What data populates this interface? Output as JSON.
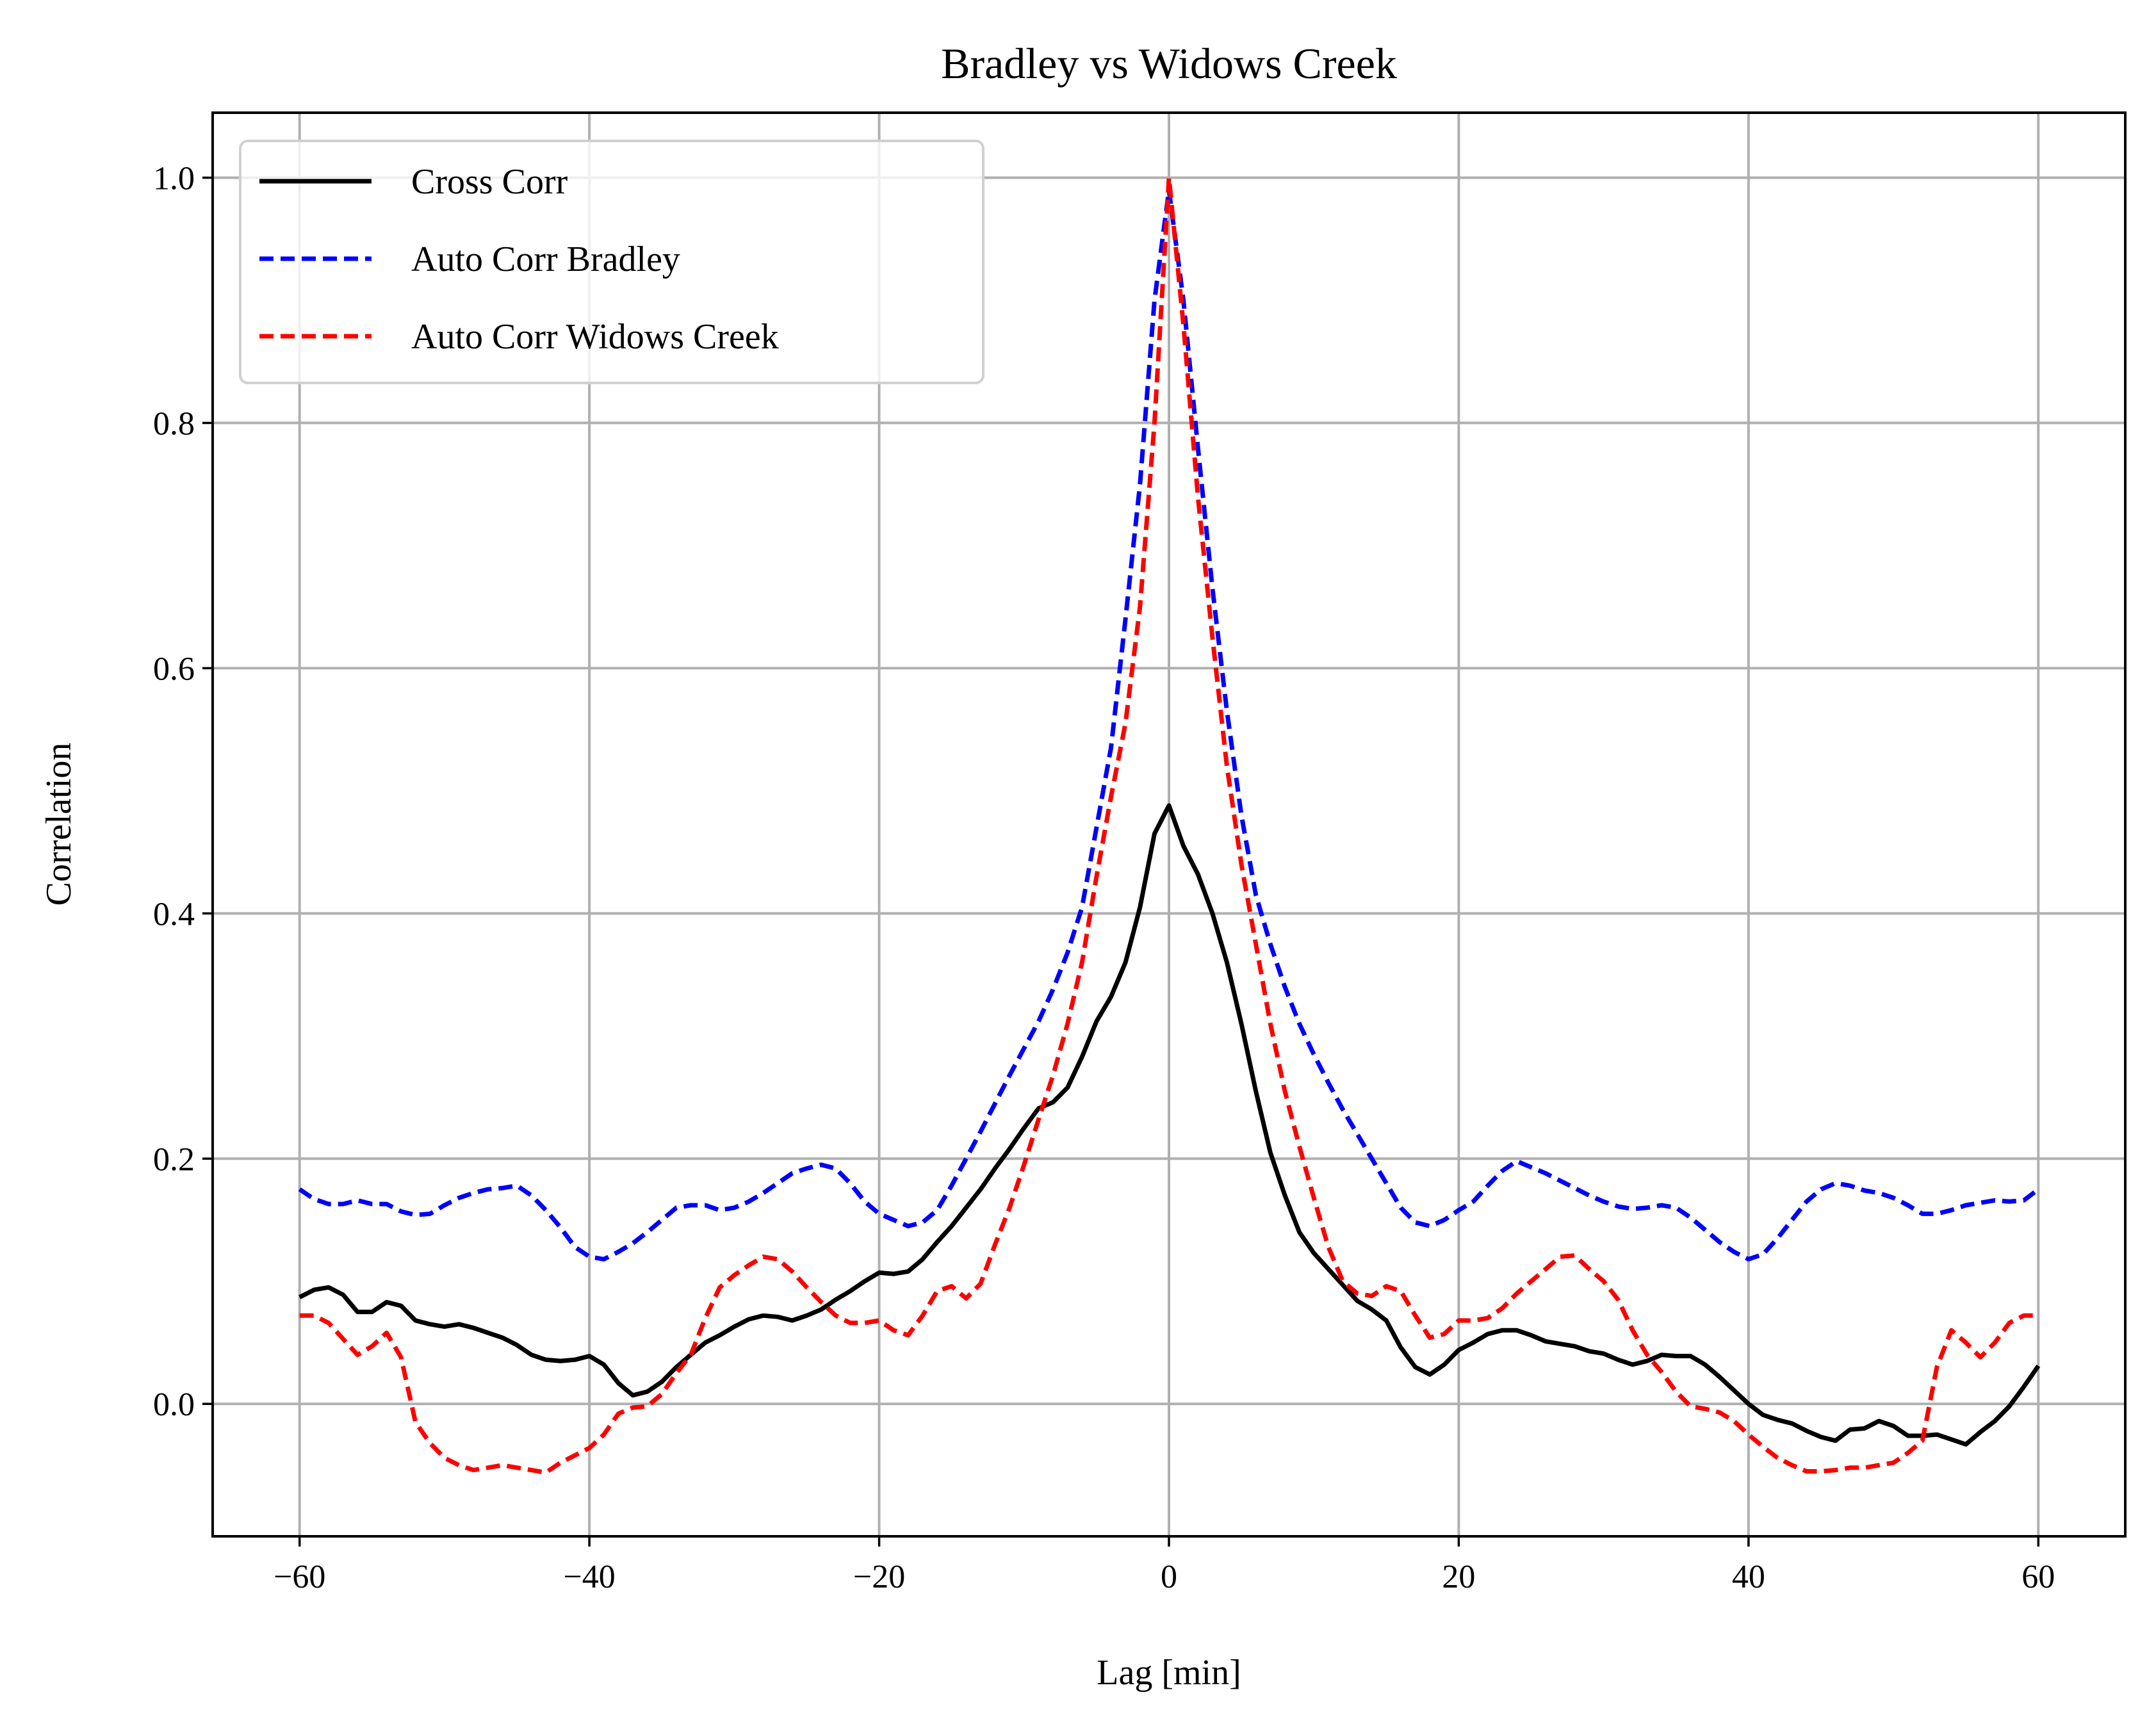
{
  "chart_data": {
    "type": "line",
    "title": "Bradley vs Widows Creek",
    "xlabel": "Lag [min]",
    "ylabel": "Correlation",
    "xlim": [
      -66,
      66
    ],
    "ylim": [
      -0.108,
      1.053
    ],
    "xticks": [
      -60,
      -40,
      -20,
      0,
      20,
      40,
      60
    ],
    "yticks": [
      0.0,
      0.2,
      0.4,
      0.6,
      0.8,
      1.0
    ],
    "xtick_labels": [
      "−60",
      "−40",
      "−20",
      "0",
      "20",
      "40",
      "60"
    ],
    "ytick_labels": [
      "0.0",
      "0.2",
      "0.4",
      "0.6",
      "0.8",
      "1.0"
    ],
    "grid": true,
    "legend_position": "top-left",
    "series": [
      {
        "name": "Cross Corr",
        "color": "#000000",
        "dash": "solid",
        "x": [
          -60,
          -59,
          -58,
          -57,
          -56,
          -55,
          -54,
          -53,
          -52,
          -51,
          -50,
          -49,
          -48,
          -47,
          -46,
          -45,
          -44,
          -43,
          -42,
          -41,
          -40,
          -39,
          -38,
          -37,
          -36,
          -35,
          -34,
          -33,
          -32,
          -31,
          -30,
          -29,
          -28,
          -27,
          -26,
          -25,
          -24,
          -23,
          -22,
          -21,
          -20,
          -19,
          -18,
          -17,
          -16,
          -15,
          -14,
          -13,
          -12,
          -11,
          -10,
          -9,
          -8,
          -7,
          -6,
          -5,
          -4,
          -3,
          -2,
          -1,
          0,
          1,
          2,
          3,
          4,
          5,
          6,
          7,
          8,
          9,
          10,
          11,
          12,
          13,
          14,
          15,
          16,
          17,
          18,
          19,
          20,
          21,
          22,
          23,
          24,
          25,
          26,
          27,
          28,
          29,
          30,
          31,
          32,
          33,
          34,
          35,
          36,
          37,
          38,
          39,
          40,
          41,
          42,
          43,
          44,
          45,
          46,
          47,
          48,
          49,
          50,
          51,
          52,
          53,
          54,
          55,
          56,
          57,
          58,
          59,
          60
        ],
        "y": [
          0.087,
          0.093,
          0.095,
          0.089,
          0.075,
          0.075,
          0.083,
          0.08,
          0.068,
          0.065,
          0.063,
          0.065,
          0.062,
          0.058,
          0.054,
          0.048,
          0.04,
          0.036,
          0.035,
          0.036,
          0.039,
          0.032,
          0.017,
          0.007,
          0.01,
          0.018,
          0.03,
          0.04,
          0.05,
          0.056,
          0.063,
          0.069,
          0.072,
          0.071,
          0.068,
          0.072,
          0.077,
          0.085,
          0.092,
          0.1,
          0.107,
          0.106,
          0.108,
          0.118,
          0.132,
          0.145,
          0.16,
          0.175,
          0.192,
          0.208,
          0.225,
          0.241,
          0.246,
          0.258,
          0.283,
          0.312,
          0.332,
          0.36,
          0.405,
          0.465,
          0.488,
          0.455,
          0.432,
          0.4,
          0.36,
          0.31,
          0.255,
          0.205,
          0.17,
          0.14,
          0.123,
          0.11,
          0.097,
          0.084,
          0.077,
          0.068,
          0.046,
          0.03,
          0.024,
          0.032,
          0.044,
          0.05,
          0.057,
          0.06,
          0.06,
          0.056,
          0.051,
          0.049,
          0.047,
          0.043,
          0.041,
          0.036,
          0.032,
          0.035,
          0.04,
          0.039,
          0.039,
          0.032,
          0.022,
          0.011,
          0.0,
          -0.009,
          -0.013,
          -0.016,
          -0.022,
          -0.027,
          -0.03,
          -0.021,
          -0.02,
          -0.014,
          -0.018,
          -0.026,
          -0.026,
          -0.025,
          -0.029,
          -0.033,
          -0.023,
          -0.014,
          -0.002,
          0.014,
          0.031
        ]
      },
      {
        "name": "Auto Corr Bradley",
        "color": "#0000ff",
        "dash": "dashed",
        "x": [
          -60,
          -59,
          -58,
          -57,
          -56,
          -55,
          -54,
          -53,
          -52,
          -51,
          -50,
          -49,
          -48,
          -47,
          -46,
          -45,
          -44,
          -43,
          -42,
          -41,
          -40,
          -39,
          -38,
          -37,
          -36,
          -35,
          -34,
          -33,
          -32,
          -31,
          -30,
          -29,
          -28,
          -27,
          -26,
          -25,
          -24,
          -23,
          -22,
          -21,
          -20,
          -19,
          -18,
          -17,
          -16,
          -15,
          -14,
          -13,
          -12,
          -11,
          -10,
          -9,
          -8,
          -7,
          -6,
          -5,
          -4,
          -3,
          -2,
          -1,
          0,
          1,
          2,
          3,
          4,
          5,
          6,
          7,
          8,
          9,
          10,
          11,
          12,
          13,
          14,
          15,
          16,
          17,
          18,
          19,
          20,
          21,
          22,
          23,
          24,
          25,
          26,
          27,
          28,
          29,
          30,
          31,
          32,
          33,
          34,
          35,
          36,
          37,
          38,
          39,
          40,
          41,
          42,
          43,
          44,
          45,
          46,
          47,
          48,
          49,
          50,
          51,
          52,
          53,
          54,
          55,
          56,
          57,
          58,
          59,
          60
        ],
        "y": [
          0.175,
          0.167,
          0.163,
          0.163,
          0.166,
          0.163,
          0.163,
          0.157,
          0.154,
          0.155,
          0.162,
          0.168,
          0.172,
          0.175,
          0.176,
          0.178,
          0.17,
          0.158,
          0.144,
          0.128,
          0.12,
          0.118,
          0.124,
          0.131,
          0.14,
          0.15,
          0.16,
          0.162,
          0.162,
          0.158,
          0.16,
          0.165,
          0.172,
          0.18,
          0.188,
          0.192,
          0.195,
          0.192,
          0.18,
          0.165,
          0.155,
          0.15,
          0.145,
          0.148,
          0.158,
          0.178,
          0.2,
          0.222,
          0.245,
          0.268,
          0.29,
          0.312,
          0.338,
          0.368,
          0.405,
          0.47,
          0.535,
          0.64,
          0.75,
          0.9,
          0.99,
          0.9,
          0.78,
          0.665,
          0.565,
          0.48,
          0.415,
          0.375,
          0.34,
          0.31,
          0.285,
          0.262,
          0.24,
          0.22,
          0.2,
          0.18,
          0.16,
          0.148,
          0.145,
          0.15,
          0.158,
          0.165,
          0.178,
          0.19,
          0.198,
          0.193,
          0.188,
          0.182,
          0.176,
          0.17,
          0.165,
          0.161,
          0.159,
          0.16,
          0.162,
          0.16,
          0.152,
          0.142,
          0.132,
          0.124,
          0.118,
          0.122,
          0.135,
          0.15,
          0.165,
          0.175,
          0.18,
          0.178,
          0.174,
          0.172,
          0.168,
          0.162,
          0.155,
          0.155,
          0.158,
          0.162,
          0.164,
          0.166,
          0.165,
          0.166,
          0.175
        ]
      },
      {
        "name": "Auto Corr Widows Creek",
        "color": "#ff0000",
        "dash": "dashed",
        "x": [
          -60,
          -59,
          -58,
          -57,
          -56,
          -55,
          -54,
          -53,
          -52,
          -51,
          -50,
          -49,
          -48,
          -47,
          -46,
          -45,
          -44,
          -43,
          -42,
          -41,
          -40,
          -39,
          -38,
          -37,
          -36,
          -35,
          -34,
          -33,
          -32,
          -31,
          -30,
          -29,
          -28,
          -27,
          -26,
          -25,
          -24,
          -23,
          -22,
          -21,
          -20,
          -19,
          -18,
          -17,
          -16,
          -15,
          -14,
          -13,
          -12,
          -11,
          -10,
          -9,
          -8,
          -7,
          -6,
          -5,
          -4,
          -3,
          -2,
          -1,
          0,
          1,
          2,
          3,
          4,
          5,
          6,
          7,
          8,
          9,
          10,
          11,
          12,
          13,
          14,
          15,
          16,
          17,
          18,
          19,
          20,
          21,
          22,
          23,
          24,
          25,
          26,
          27,
          28,
          29,
          30,
          31,
          32,
          33,
          34,
          35,
          36,
          37,
          38,
          39,
          40,
          41,
          42,
          43,
          44,
          45,
          46,
          47,
          48,
          49,
          50,
          51,
          52,
          53,
          54,
          55,
          56,
          57,
          58,
          59,
          60
        ],
        "y": [
          0.072,
          0.072,
          0.066,
          0.053,
          0.04,
          0.047,
          0.058,
          0.038,
          -0.015,
          -0.032,
          -0.044,
          -0.05,
          -0.054,
          -0.052,
          -0.05,
          -0.052,
          -0.054,
          -0.056,
          -0.048,
          -0.042,
          -0.036,
          -0.025,
          -0.008,
          -0.003,
          -0.002,
          0.008,
          0.025,
          0.04,
          0.07,
          0.095,
          0.105,
          0.113,
          0.12,
          0.118,
          0.108,
          0.095,
          0.083,
          0.072,
          0.066,
          0.066,
          0.068,
          0.06,
          0.056,
          0.072,
          0.092,
          0.096,
          0.086,
          0.098,
          0.13,
          0.16,
          0.195,
          0.232,
          0.268,
          0.31,
          0.36,
          0.43,
          0.495,
          0.555,
          0.65,
          0.8,
          1.0,
          0.88,
          0.74,
          0.625,
          0.52,
          0.44,
          0.375,
          0.31,
          0.255,
          0.21,
          0.168,
          0.128,
          0.1,
          0.09,
          0.088,
          0.096,
          0.092,
          0.072,
          0.054,
          0.057,
          0.068,
          0.068,
          0.07,
          0.078,
          0.09,
          0.1,
          0.11,
          0.12,
          0.121,
          0.11,
          0.1,
          0.085,
          0.06,
          0.04,
          0.026,
          0.01,
          -0.002,
          -0.004,
          -0.007,
          -0.014,
          -0.025,
          -0.035,
          -0.044,
          -0.05,
          -0.055,
          -0.055,
          -0.054,
          -0.052,
          -0.052,
          -0.05,
          -0.048,
          -0.04,
          -0.03,
          0.03,
          0.06,
          0.05,
          0.038,
          0.05,
          0.066,
          0.072,
          0.072
        ]
      }
    ]
  }
}
